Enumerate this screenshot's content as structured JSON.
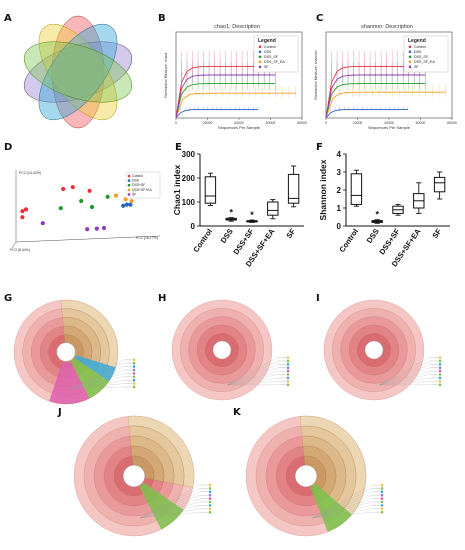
{
  "panel_labels": [
    "A",
    "B",
    "C",
    "D",
    "E",
    "F",
    "G",
    "H",
    "I",
    "J",
    "K"
  ],
  "colors": {
    "Control": "#e8303a",
    "DSS": "#2f63c9",
    "DSS+SF": "#1f9a2a",
    "DSS+SF+EA": "#f59d1c",
    "SF": "#8e3ab8"
  },
  "chart_data": [
    {
      "id": "B",
      "type": "line",
      "title": "chao1: Description",
      "xlabel": "Sequences Per Sample",
      "ylabel": "Rarefaction Measure: chao1",
      "legend_title": "Legend",
      "legend_entries": [
        "Control",
        "DSS",
        "DSS_SF",
        "DSS_SF_EA",
        "SF"
      ],
      "x_ticks": [
        "0",
        "20000",
        "40000",
        "60000",
        "80000"
      ],
      "x_range": [
        0,
        80000
      ],
      "y_range": [
        0,
        250
      ],
      "series": [
        {
          "name": "Control",
          "plateau": 150,
          "end": 63000
        },
        {
          "name": "DSS",
          "plateau": 25,
          "end": 52000
        },
        {
          "name": "DSS_SF",
          "plateau": 100,
          "end": 63000
        },
        {
          "name": "DSS_SF_EA",
          "plateau": 72,
          "end": 76000
        },
        {
          "name": "SF",
          "plateau": 125,
          "end": 63000
        }
      ]
    },
    {
      "id": "C",
      "type": "line",
      "title": "shannon: Description",
      "xlabel": "Sequences Per Sample",
      "ylabel": "Rarefaction Measure: shannon",
      "legend_title": "Legend",
      "legend_entries": [
        "Control",
        "DSS",
        "DSS_SF",
        "DSS_SF_EA",
        "SF"
      ],
      "x_ticks": [
        "0",
        "20000",
        "40000",
        "60000",
        "80000"
      ],
      "x_range": [
        0,
        80000
      ],
      "y_range": [
        0,
        4
      ],
      "series": [
        {
          "name": "Control",
          "plateau": 2.4,
          "end": 63000
        },
        {
          "name": "DSS",
          "plateau": 0.4,
          "end": 52000
        },
        {
          "name": "DSS_SF",
          "plateau": 1.6,
          "end": 63000
        },
        {
          "name": "DSS_SF_EA",
          "plateau": 1.2,
          "end": 76000
        },
        {
          "name": "SF",
          "plateau": 2.0,
          "end": 63000
        }
      ]
    },
    {
      "id": "D",
      "type": "scatter",
      "axis_labels": [
        "PC1 (16.17%)",
        "PC2 (14.42%)",
        "PC3 (8.44%)"
      ],
      "legend_entries": [
        "Control",
        "DSS",
        "DSS+SF",
        "DSS+SF+EA",
        "SF"
      ],
      "series": [
        {
          "name": "Control",
          "points": [
            [
              0.02,
              0.38
            ],
            [
              0.05,
              0.41
            ],
            [
              0.36,
              0.75
            ],
            [
              0.44,
              0.78
            ],
            [
              0.58,
              0.72
            ],
            [
              0.02,
              0.28
            ]
          ]
        },
        {
          "name": "DSS",
          "points": [
            [
              0.86,
              0.47
            ],
            [
              0.89,
              0.49
            ],
            [
              0.92,
              0.49
            ]
          ]
        },
        {
          "name": "DSS+SF",
          "points": [
            [
              0.34,
              0.43
            ],
            [
              0.6,
              0.45
            ],
            [
              0.51,
              0.55
            ],
            [
              0.73,
              0.62
            ]
          ]
        },
        {
          "name": "DSS+SF+EA",
          "points": [
            [
              0.8,
              0.64
            ],
            [
              0.88,
              0.58
            ],
            [
              0.93,
              0.55
            ]
          ]
        },
        {
          "name": "SF",
          "points": [
            [
              0.19,
              0.18
            ],
            [
              0.56,
              0.08
            ],
            [
              0.64,
              0.09
            ],
            [
              0.7,
              0.1
            ]
          ]
        }
      ]
    },
    {
      "id": "E",
      "type": "box",
      "ylabel": "Chao1 index",
      "ylim": [
        0,
        300
      ],
      "yticks": [
        "0",
        "100",
        "200",
        "300"
      ],
      "categories": [
        "Control",
        "DSS",
        "DSS+SF",
        "DSS+SF+EA",
        "SF"
      ],
      "boxes": [
        {
          "min": 85,
          "q1": 95,
          "median": 125,
          "q3": 205,
          "max": 220
        },
        {
          "min": 20,
          "q1": 25,
          "median": 28,
          "q3": 32,
          "max": 35
        },
        {
          "min": 15,
          "q1": 17,
          "median": 20,
          "q3": 22,
          "max": 25
        },
        {
          "min": 30,
          "q1": 45,
          "median": 65,
          "q3": 100,
          "max": 110
        },
        {
          "min": 80,
          "q1": 95,
          "median": 115,
          "q3": 215,
          "max": 250
        }
      ],
      "markers": [
        "",
        "*",
        "*",
        "",
        ""
      ]
    },
    {
      "id": "F",
      "type": "box",
      "ylabel": "Shannon index",
      "ylim": [
        0,
        4
      ],
      "yticks": [
        "0",
        "1",
        "2",
        "3",
        "4"
      ],
      "categories": [
        "Control",
        "DSS",
        "DSS+SF",
        "DSS+SF+EA",
        "SF"
      ],
      "boxes": [
        {
          "min": 1.1,
          "q1": 1.2,
          "median": 1.7,
          "q3": 2.9,
          "max": 3.1
        },
        {
          "min": 0.15,
          "q1": 0.2,
          "median": 0.25,
          "q3": 0.3,
          "max": 0.35
        },
        {
          "min": 0.6,
          "q1": 0.7,
          "median": 0.9,
          "q3": 1.1,
          "max": 1.2
        },
        {
          "min": 0.7,
          "q1": 1.0,
          "median": 1.4,
          "q3": 1.8,
          "max": 2.4
        },
        {
          "min": 1.5,
          "q1": 1.9,
          "median": 2.4,
          "q3": 2.7,
          "max": 3.0
        }
      ],
      "markers": [
        "",
        "*",
        "",
        "",
        ""
      ]
    }
  ]
}
